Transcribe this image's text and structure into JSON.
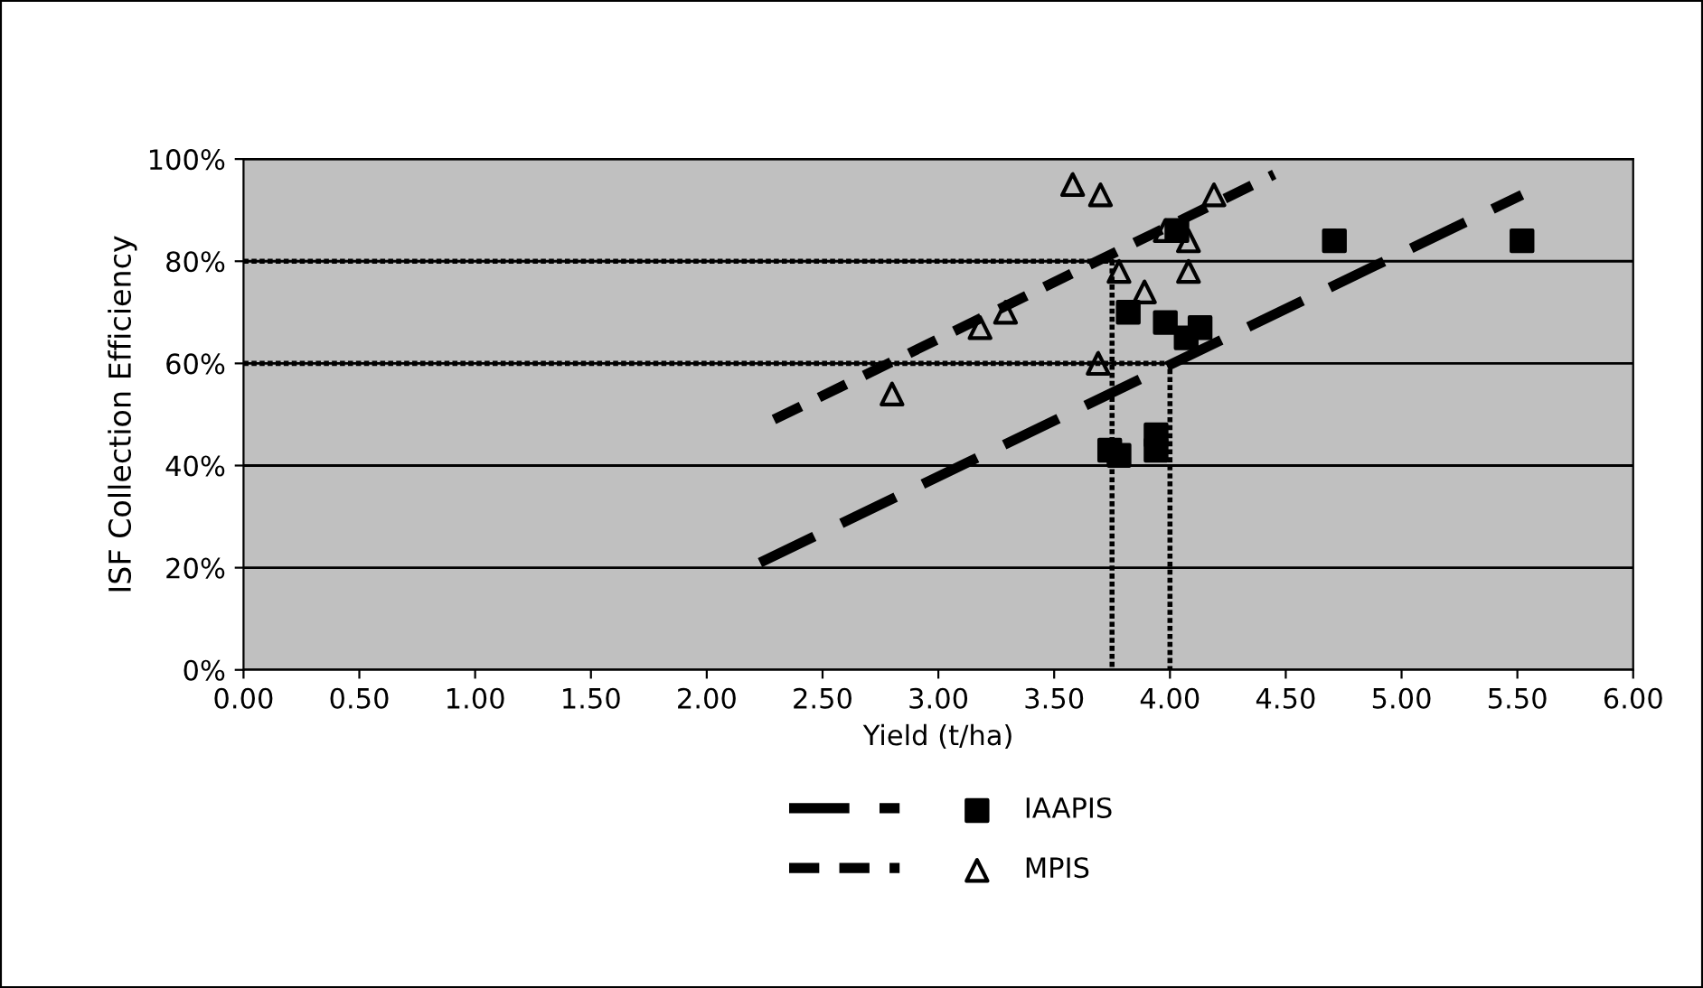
{
  "chart_data": {
    "type": "scatter",
    "xlabel": "Yield (t/ha)",
    "ylabel": "ISF Collection Efficiency",
    "xlim": [
      0,
      6
    ],
    "ylim": [
      0,
      100
    ],
    "xticks": [
      {
        "value": 0,
        "label": "0.00"
      },
      {
        "value": 0.5,
        "label": "0.50"
      },
      {
        "value": 1,
        "label": "1.00"
      },
      {
        "value": 1.5,
        "label": "1.50"
      },
      {
        "value": 2,
        "label": "2.00"
      },
      {
        "value": 2.5,
        "label": "2.50"
      },
      {
        "value": 3,
        "label": "3.00"
      },
      {
        "value": 3.5,
        "label": "3.50"
      },
      {
        "value": 4,
        "label": "4.00"
      },
      {
        "value": 4.5,
        "label": "4.50"
      },
      {
        "value": 5,
        "label": "5.00"
      },
      {
        "value": 5.5,
        "label": "5.50"
      },
      {
        "value": 6,
        "label": "6.00"
      }
    ],
    "yticks": [
      {
        "value": 0,
        "label": "0%"
      },
      {
        "value": 20,
        "label": "20%"
      },
      {
        "value": 40,
        "label": "40%"
      },
      {
        "value": 60,
        "label": "60%"
      },
      {
        "value": 80,
        "label": "80%"
      },
      {
        "value": 100,
        "label": "100%"
      }
    ],
    "grid": "y",
    "legend": "bottom",
    "series": [
      {
        "name": "IAAPIS",
        "marker": "square",
        "color": "#000000",
        "x": [
          4.03,
          3.82,
          3.98,
          4.07,
          4.13,
          3.74,
          3.78,
          3.94,
          3.94,
          4.71,
          5.52
        ],
        "values": [
          86,
          70,
          68,
          65,
          67,
          43,
          42,
          46,
          43,
          84,
          84
        ]
      },
      {
        "name": "MPIS",
        "marker": "triangle",
        "color": "#000000",
        "x": [
          3.58,
          3.7,
          4.19,
          3.98,
          4.08,
          4.08,
          3.78,
          3.89,
          3.29,
          3.18,
          3.69,
          2.8
        ],
        "values": [
          95,
          93,
          93,
          86,
          84,
          78,
          78,
          74,
          70,
          67,
          60,
          54
        ]
      },
      {
        "type": "line",
        "line_style": "long_dash",
        "color": "#000000",
        "x": [
          2.23,
          5.52
        ],
        "values": [
          21,
          93
        ]
      },
      {
        "type": "line",
        "line_style": "dashed",
        "color": "#000000",
        "x": [
          2.29,
          4.45
        ],
        "values": [
          49,
          97
        ]
      },
      {
        "type": "line",
        "line_style": "dotted",
        "color": "#000000",
        "x": [
          0,
          3.75,
          3.75
        ],
        "values": [
          80,
          80,
          0
        ]
      },
      {
        "type": "line",
        "line_style": "dotted",
        "color": "#000000",
        "x": [
          0,
          4.0,
          4.0
        ],
        "values": [
          60,
          60,
          0
        ]
      }
    ]
  }
}
